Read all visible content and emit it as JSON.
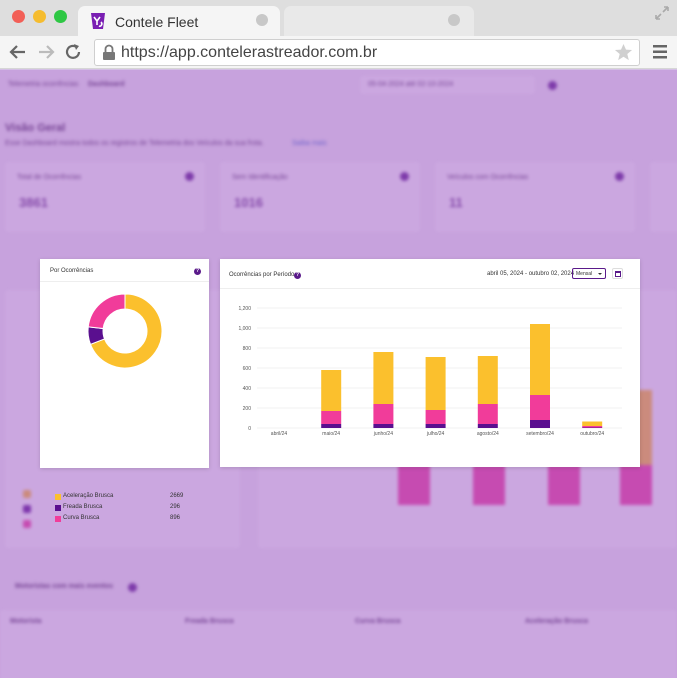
{
  "browser": {
    "tab_title": "Contele Fleet",
    "url": "https://app.contelerastreador.com.br"
  },
  "dashboard": {
    "breadcrumb_parent": "Telemetria ocorrências",
    "breadcrumb_current": "Dashboard",
    "date_range": "05-04-2024 até 02-10-2024",
    "page_title": "Visão Geral",
    "page_subtitle": "Esse Dashboard mostra todos os registros de Telemetria dos Veículos da sua frota.",
    "page_subtitle_link": "Saiba mais",
    "kpis": [
      {
        "label": "Total de Ocorrências",
        "value": "3861"
      },
      {
        "label": "Sem Identificação",
        "value": "1016"
      },
      {
        "label": "Veículos com Ocorrências",
        "value": "11"
      }
    ],
    "ranking_title": "Motoristas com mais eventos",
    "table_headers": [
      "Motorista",
      "Freada Brusca",
      "Curva Brusca",
      "Aceleração Brusca"
    ]
  },
  "pie_panel": {
    "title": "Por Ocorrências",
    "help": "?",
    "legend": [
      {
        "label": "Aceleração Brusca",
        "value": "2669",
        "color": "#fbc02d"
      },
      {
        "label": "Freada Brusca",
        "value": "296",
        "color": "#5a0f8f"
      },
      {
        "label": "Curva Brusca",
        "value": "896",
        "color": "#f13c9a"
      }
    ]
  },
  "bar_panel": {
    "title": "Ocorrências por Período",
    "help": "?",
    "date_range": "abril 05, 2024 - outubro 02, 2024",
    "period_select": "Mensal"
  },
  "chart_data": [
    {
      "type": "pie",
      "title": "Por Ocorrências",
      "labels": [
        "Aceleração Brusca",
        "Freada Brusca",
        "Curva Brusca"
      ],
      "values": [
        2669,
        296,
        896
      ],
      "colors": [
        "#fbc02d",
        "#5a0f8f",
        "#f13c9a"
      ],
      "donut": true
    },
    {
      "type": "bar",
      "stacked": true,
      "title": "Ocorrências por Período",
      "categories": [
        "abril/24",
        "maio/24",
        "junho/24",
        "julho/24",
        "agosto/24",
        "setembro/24",
        "outubro/24"
      ],
      "series": [
        {
          "name": "Freada Brusca",
          "color": "#5a0f8f",
          "values": [
            0,
            40,
            40,
            40,
            40,
            80,
            5
          ]
        },
        {
          "name": "Curva Brusca",
          "color": "#f13c9a",
          "values": [
            0,
            130,
            200,
            140,
            200,
            250,
            15
          ]
        },
        {
          "name": "Aceleração Brusca",
          "color": "#fbc02d",
          "values": [
            0,
            410,
            520,
            530,
            480,
            710,
            45
          ]
        }
      ],
      "ylim": [
        0,
        1200
      ],
      "yticks": [
        "0",
        "200",
        "400",
        "600",
        "800",
        "1,000",
        "1,200"
      ],
      "grid": true,
      "legend": "bottom"
    }
  ]
}
